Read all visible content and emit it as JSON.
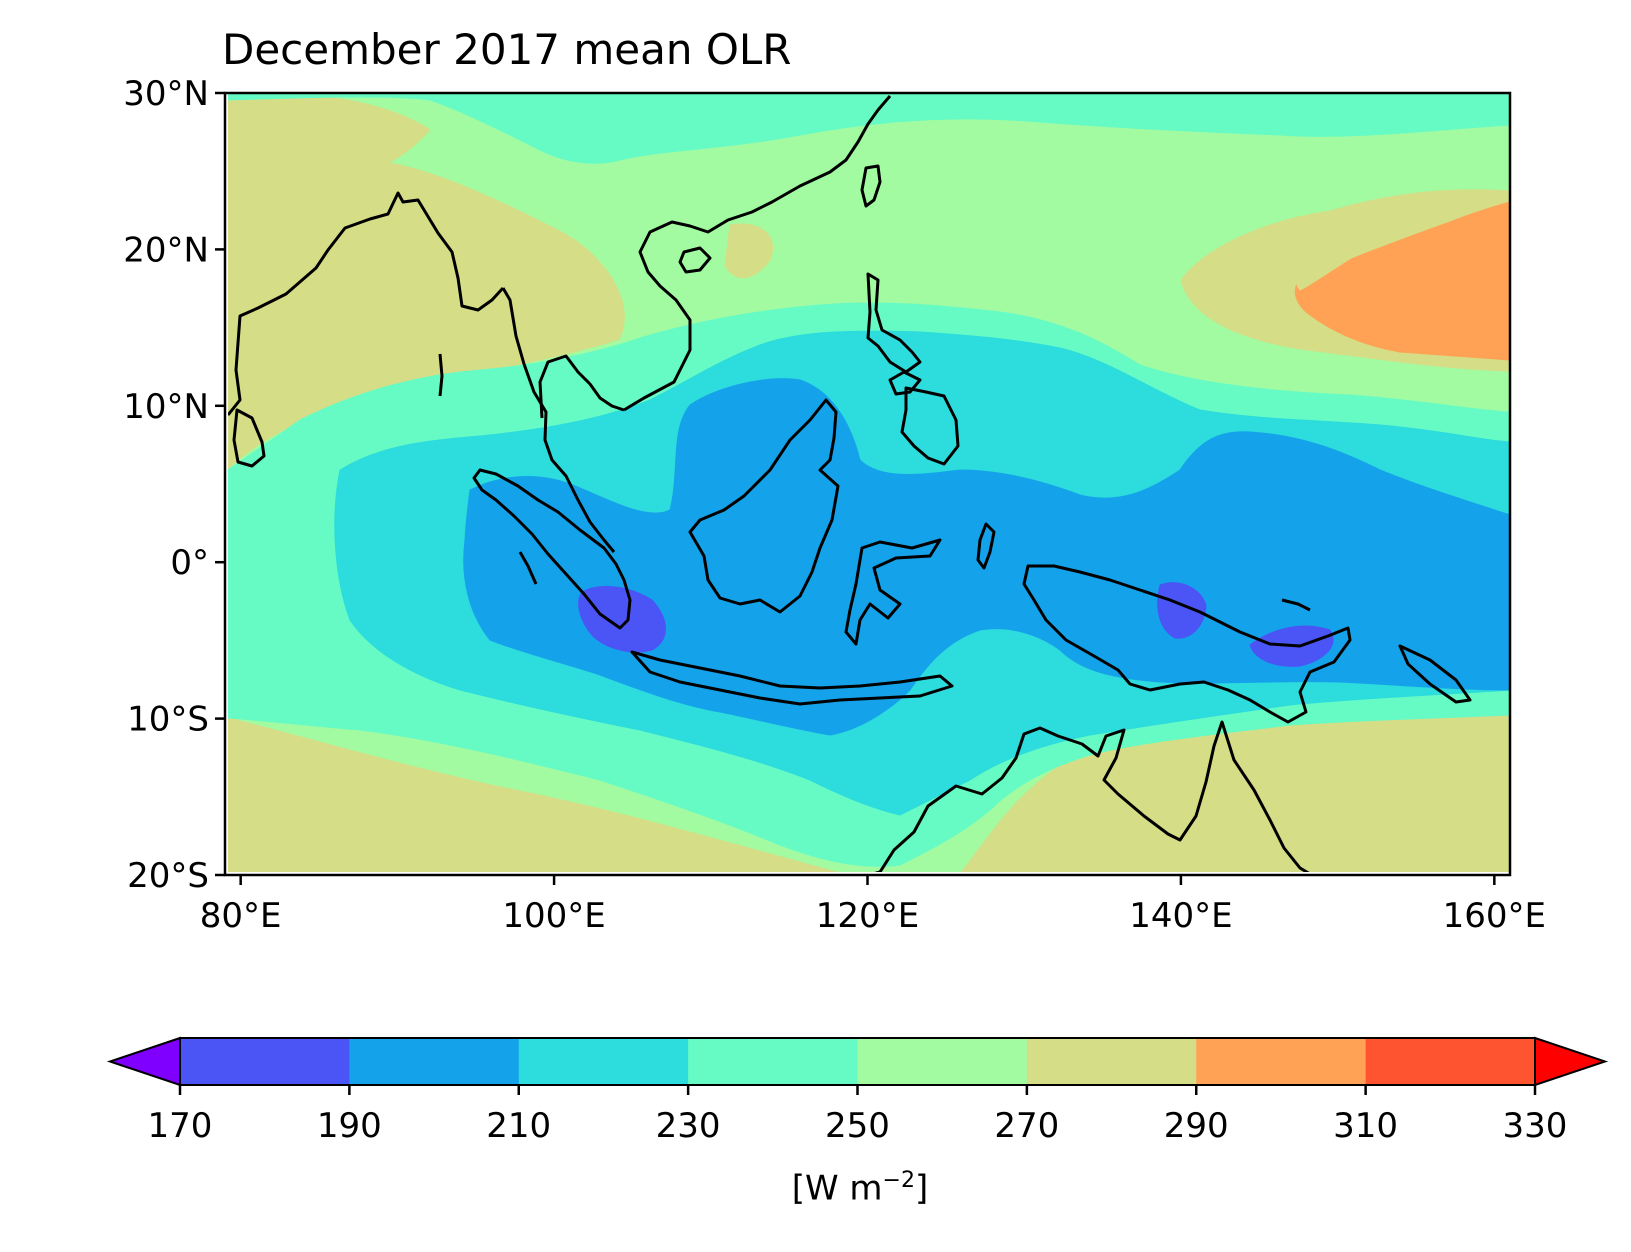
{
  "title": "December 2017 mean OLR",
  "map": {
    "lon_range": [
      79,
      161
    ],
    "lat_range": [
      -20,
      30
    ],
    "lon_ticks": [
      {
        "value": 80,
        "label": "80°E"
      },
      {
        "value": 100,
        "label": "100°E"
      },
      {
        "value": 120,
        "label": "120°E"
      },
      {
        "value": 140,
        "label": "140°E"
      },
      {
        "value": 160,
        "label": "160°E"
      }
    ],
    "lat_ticks": [
      {
        "value": 30,
        "label": "30°N"
      },
      {
        "value": 20,
        "label": "20°N"
      },
      {
        "value": 10,
        "label": "10°N"
      },
      {
        "value": 0,
        "label": "0°"
      },
      {
        "value": -10,
        "label": "10°S"
      },
      {
        "value": -20,
        "label": "20°S"
      }
    ]
  },
  "colorbar": {
    "levels": [
      170,
      190,
      210,
      230,
      250,
      270,
      290,
      310,
      330
    ],
    "labels": [
      "170",
      "190",
      "210",
      "230",
      "250",
      "270",
      "290",
      "310",
      "330"
    ],
    "colors": [
      "#4b55f5",
      "#14a3ea",
      "#2ddcdc",
      "#66fbc4",
      "#a2fba1",
      "#d5dd86",
      "#ffa256",
      "#ff5430"
    ],
    "under_color": "#7f00ff",
    "over_color": "#ff0000",
    "unit_prefix": "[W m",
    "unit_sup": "−2",
    "unit_suffix": "]"
  },
  "palette": {
    "v190": "#4b55f5",
    "v210": "#14a3ea",
    "v230": "#2ddcdc",
    "v250": "#66fbc4",
    "v270": "#a2fba1",
    "v290": "#d5dd86",
    "v310": "#ffa256"
  }
}
